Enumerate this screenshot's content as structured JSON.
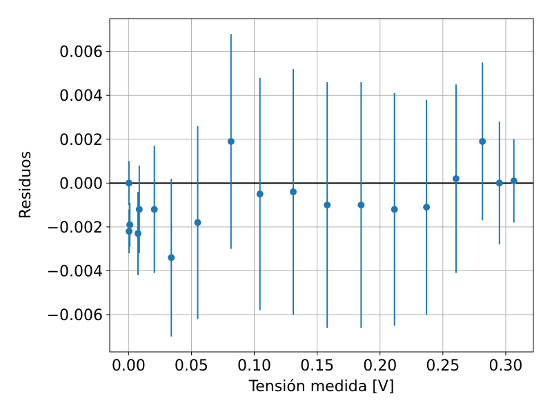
{
  "chart_data": {
    "type": "scatter",
    "title": "",
    "xlabel": "Tensión medida [V]",
    "ylabel": "Residuos",
    "xlim": [
      -0.015,
      0.322
    ],
    "ylim": [
      -0.0077,
      0.0075
    ],
    "x_ticks": [
      0.0,
      0.05,
      0.1,
      0.15,
      0.2,
      0.25,
      0.3
    ],
    "x_tick_labels": [
      "0.00",
      "0.05",
      "0.10",
      "0.15",
      "0.20",
      "0.25",
      "0.30"
    ],
    "y_ticks": [
      -0.006,
      -0.004,
      -0.002,
      0.0,
      0.002,
      0.004,
      0.006
    ],
    "y_tick_labels": [
      "−0.006",
      "−0.004",
      "−0.002",
      "0.000",
      "0.002",
      "0.004",
      "0.006"
    ],
    "grid": true,
    "reference_line": 0,
    "series": [
      {
        "color": "#1f77b4",
        "marker": "circle",
        "points": [
          {
            "x": 0.0003,
            "y": 0.0,
            "err": 0.001
          },
          {
            "x": 0.0004,
            "y": -0.0022,
            "err": 0.001
          },
          {
            "x": 0.001,
            "y": -0.0019,
            "err": 0.001
          },
          {
            "x": 0.0075,
            "y": -0.0023,
            "err": 0.0019
          },
          {
            "x": 0.0085,
            "y": -0.0012,
            "err": 0.002
          },
          {
            "x": 0.0205,
            "y": -0.0012,
            "err": 0.0029
          },
          {
            "x": 0.034,
            "y": -0.0034,
            "err": 0.0036
          },
          {
            "x": 0.055,
            "y": -0.0018,
            "err": 0.0044
          },
          {
            "x": 0.0815,
            "y": 0.0019,
            "err": 0.0049
          },
          {
            "x": 0.1045,
            "y": -0.0005,
            "err": 0.0053
          },
          {
            "x": 0.131,
            "y": -0.0004,
            "err": 0.0056
          },
          {
            "x": 0.158,
            "y": -0.001,
            "err": 0.0056
          },
          {
            "x": 0.185,
            "y": -0.001,
            "err": 0.0056
          },
          {
            "x": 0.2115,
            "y": -0.0012,
            "err": 0.0053
          },
          {
            "x": 0.237,
            "y": -0.0011,
            "err": 0.0049
          },
          {
            "x": 0.2605,
            "y": 0.0002,
            "err": 0.0043
          },
          {
            "x": 0.2815,
            "y": 0.0019,
            "err": 0.0036
          },
          {
            "x": 0.295,
            "y": 0.0,
            "err": 0.0028
          },
          {
            "x": 0.3065,
            "y": 0.0001,
            "err": 0.0019
          }
        ]
      }
    ]
  }
}
